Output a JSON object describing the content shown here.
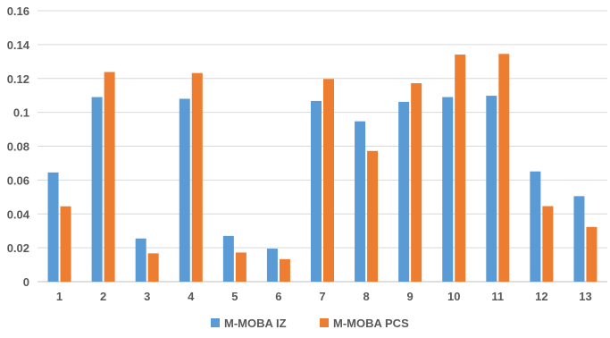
{
  "chart_data": {
    "type": "bar",
    "categories": [
      "1",
      "2",
      "3",
      "4",
      "5",
      "6",
      "7",
      "8",
      "9",
      "10",
      "11",
      "12",
      "13"
    ],
    "series": [
      {
        "name": "M-MOBA IZ",
        "color": "#5B9BD5",
        "values": [
          0.0645,
          0.109,
          0.0255,
          0.108,
          0.027,
          0.0195,
          0.1067,
          0.0947,
          0.1062,
          0.109,
          0.1098,
          0.0651,
          0.0505
        ]
      },
      {
        "name": "M-MOBA PCS",
        "color": "#ED7D31",
        "values": [
          0.0445,
          0.1238,
          0.0167,
          0.1232,
          0.0172,
          0.0133,
          0.1197,
          0.0772,
          0.1172,
          0.1341,
          0.1345,
          0.0446,
          0.0323
        ]
      }
    ],
    "ylim": [
      0,
      0.16
    ],
    "yticks": [
      "0",
      "0.02",
      "0.04",
      "0.06",
      "0.08",
      "0.1",
      "0.12",
      "0.14",
      "0.16"
    ],
    "grid": true,
    "legend": "bottom"
  }
}
